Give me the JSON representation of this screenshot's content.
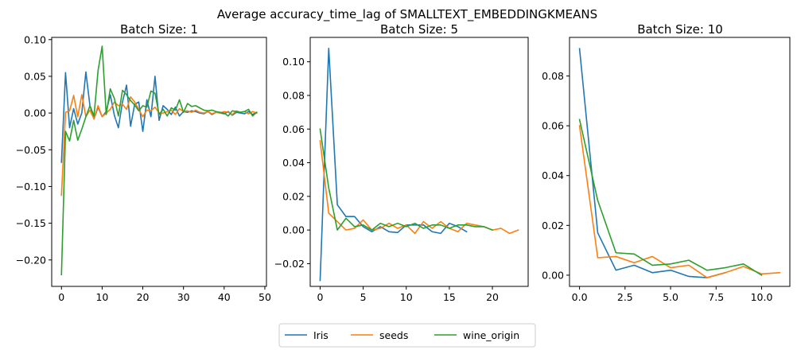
{
  "figure": {
    "suptitle": "Average accuracy_time_lag of SMALLTEXT_EMBEDDINGKMEANS"
  },
  "legend": {
    "placement": "bottom-center",
    "entries": [
      {
        "name": "Iris",
        "color": "#1f77b4"
      },
      {
        "name": "seeds",
        "color": "#ff7f0e"
      },
      {
        "name": "wine_origin",
        "color": "#2ca02c"
      }
    ]
  },
  "chart_data": [
    {
      "type": "line",
      "title": "Batch Size: 1",
      "xlabel": "",
      "ylabel": "",
      "xlim": [
        -2.4,
        50.4
      ],
      "ylim": [
        -0.236,
        0.103
      ],
      "xticks": [
        0,
        10,
        20,
        30,
        40,
        50
      ],
      "yticks": [
        -0.2,
        -0.15,
        -0.1,
        -0.05,
        0.0,
        0.05,
        0.1
      ],
      "xtick_labels": [
        "0",
        "10",
        "20",
        "30",
        "40",
        "50"
      ],
      "ytick_labels": [
        "−0.20",
        "−0.15",
        "−0.10",
        "−0.05",
        "0.00",
        "0.05",
        "0.10"
      ],
      "series": [
        {
          "name": "Iris",
          "color": "#1f77b4",
          "x": [
            0,
            1,
            2,
            3,
            4,
            5,
            6,
            7,
            8,
            9,
            10,
            11,
            12,
            13,
            14,
            15,
            16,
            17,
            18,
            19,
            20,
            21,
            22,
            23,
            24,
            25,
            26,
            27,
            28,
            29,
            30,
            31,
            32,
            33,
            34,
            35,
            36,
            37,
            38,
            39,
            40,
            41,
            42,
            43,
            44,
            45,
            46,
            47,
            48
          ],
          "y": [
            -0.067,
            0.055,
            -0.02,
            0.006,
            -0.015,
            0.0,
            0.056,
            0.01,
            -0.008,
            0.008,
            -0.005,
            0.002,
            0.025,
            -0.003,
            -0.02,
            0.015,
            0.038,
            -0.018,
            0.012,
            0.015,
            -0.025,
            0.018,
            -0.005,
            0.05,
            -0.01,
            0.01,
            0.005,
            -0.002,
            0.008,
            -0.004,
            0.002,
            0.001,
            0.003,
            0.002,
            0.0,
            -0.001,
            0.002,
            -0.002,
            0.001,
            0.0,
            -0.001,
            0.002,
            -0.003,
            0.001,
            0.0,
            -0.001,
            0.002,
            -0.002,
            0.001
          ]
        },
        {
          "name": "seeds",
          "color": "#ff7f0e",
          "x": [
            0,
            1,
            2,
            3,
            4,
            5,
            6,
            7,
            8,
            9,
            10,
            11,
            12,
            13,
            14,
            15,
            16,
            17,
            18,
            19,
            20,
            21,
            22,
            23,
            24,
            25,
            26,
            27,
            28,
            29,
            30,
            31,
            32,
            33,
            34,
            35,
            36,
            37,
            38,
            39,
            40,
            41,
            42,
            43,
            44,
            45,
            46,
            47,
            48
          ],
          "y": [
            -0.112,
            0.001,
            0.003,
            0.024,
            -0.005,
            0.025,
            -0.005,
            0.004,
            -0.008,
            0.01,
            -0.005,
            0.0,
            0.005,
            0.015,
            0.01,
            0.012,
            0.005,
            0.022,
            0.015,
            0.005,
            -0.005,
            0.004,
            0.003,
            0.008,
            0.0,
            0.0,
            0.002,
            0.004,
            -0.002,
            0.006,
            0.002,
            0.003,
            0.001,
            0.004,
            0.001,
            0.0,
            0.002,
            -0.001,
            0.001,
            0.0,
            0.002,
            0.001,
            -0.002,
            0.003,
            0.001,
            0.002,
            -0.001,
            0.002,
            0.0
          ]
        },
        {
          "name": "wine_origin",
          "color": "#2ca02c",
          "x": [
            0,
            1,
            2,
            3,
            4,
            5,
            6,
            7,
            8,
            9,
            10,
            11,
            12,
            13,
            14,
            15,
            16,
            17,
            18,
            19,
            20,
            21,
            22,
            23,
            24,
            25,
            26,
            27,
            28,
            29,
            30,
            31,
            32,
            33,
            34,
            35,
            36,
            37,
            38,
            39,
            40,
            41,
            42,
            43,
            44,
            45,
            46,
            47,
            48
          ],
          "y": [
            -0.22,
            -0.025,
            -0.038,
            -0.01,
            -0.037,
            -0.022,
            -0.005,
            0.01,
            -0.004,
            0.058,
            0.091,
            -0.002,
            0.033,
            0.02,
            -0.004,
            0.031,
            0.025,
            0.017,
            0.011,
            0.003,
            0.01,
            0.008,
            0.03,
            0.027,
            -0.002,
            0.005,
            -0.004,
            0.007,
            0.004,
            0.018,
            0.001,
            0.013,
            0.009,
            0.01,
            0.007,
            0.004,
            0.003,
            0.004,
            0.002,
            0.001,
            0.0,
            -0.004,
            0.003,
            0.002,
            0.001,
            0.002,
            0.005,
            -0.004,
            0.001
          ]
        }
      ]
    },
    {
      "type": "line",
      "title": "Batch Size: 5",
      "xlabel": "",
      "ylabel": "",
      "xlim": [
        -1.15,
        24.15
      ],
      "ylim": [
        -0.0335,
        0.1145
      ],
      "xticks": [
        0,
        5,
        10,
        15,
        20
      ],
      "yticks": [
        -0.02,
        0.0,
        0.02,
        0.04,
        0.06,
        0.08,
        0.1
      ],
      "xtick_labels": [
        "0",
        "5",
        "10",
        "15",
        "20"
      ],
      "ytick_labels": [
        "−0.02",
        "0.00",
        "0.02",
        "0.04",
        "0.06",
        "0.08",
        "0.10"
      ],
      "series": [
        {
          "name": "Iris",
          "color": "#1f77b4",
          "x": [
            0,
            1,
            2,
            3,
            4,
            5,
            6,
            7,
            8,
            9,
            10,
            11,
            12,
            13,
            14,
            15,
            16,
            17
          ],
          "y": [
            -0.03,
            0.108,
            0.015,
            0.008,
            0.008,
            0.002,
            -0.001,
            0.002,
            -0.001,
            -0.0015,
            0.003,
            0.003,
            0.003,
            -0.001,
            -0.002,
            0.004,
            0.002,
            -0.001
          ]
        },
        {
          "name": "seeds",
          "color": "#ff7f0e",
          "x": [
            0,
            1,
            2,
            3,
            4,
            5,
            6,
            7,
            8,
            9,
            10,
            11,
            12,
            13,
            14,
            15,
            16,
            17,
            18,
            19,
            20,
            21,
            22,
            23
          ],
          "y": [
            0.053,
            0.01,
            0.005,
            0.0,
            0.001,
            0.006,
            0.0,
            0.001,
            0.004,
            0.001,
            0.003,
            -0.002,
            0.005,
            0.001,
            0.005,
            0.001,
            -0.001,
            0.004,
            0.003,
            0.002,
            0.0,
            0.001,
            -0.002,
            0.0
          ]
        },
        {
          "name": "wine_origin",
          "color": "#2ca02c",
          "x": [
            0,
            1,
            2,
            3,
            4,
            5,
            6,
            7,
            8,
            9,
            10,
            11,
            12,
            13,
            14,
            15,
            16,
            17,
            18,
            19,
            20
          ],
          "y": [
            0.06,
            0.025,
            0.0,
            0.007,
            0.002,
            0.003,
            0.0,
            0.004,
            0.002,
            0.004,
            0.002,
            0.004,
            0.001,
            0.003,
            0.003,
            0.001,
            0.003,
            0.003,
            0.002,
            0.002,
            0.0
          ]
        }
      ]
    },
    {
      "type": "line",
      "title": "Batch Size: 10",
      "xlabel": "",
      "ylabel": "",
      "xlim": [
        -0.55,
        11.55
      ],
      "ylim": [
        -0.0045,
        0.0955
      ],
      "xticks": [
        0.0,
        2.5,
        5.0,
        7.5,
        10.0
      ],
      "yticks": [
        0.0,
        0.02,
        0.04,
        0.06,
        0.08
      ],
      "xtick_labels": [
        "0.0",
        "2.5",
        "5.0",
        "7.5",
        "10.0"
      ],
      "ytick_labels": [
        "0.00",
        "0.02",
        "0.04",
        "0.06",
        "0.08"
      ],
      "series": [
        {
          "name": "Iris",
          "color": "#1f77b4",
          "x": [
            0,
            1,
            2,
            3,
            4,
            5,
            6,
            7,
            8
          ],
          "y": [
            0.091,
            0.017,
            0.002,
            0.004,
            0.001,
            0.002,
            -0.0005,
            -0.001,
            0.001
          ]
        },
        {
          "name": "seeds",
          "color": "#ff7f0e",
          "x": [
            0,
            1,
            2,
            3,
            4,
            5,
            6,
            7,
            8,
            9,
            10,
            11
          ],
          "y": [
            0.06,
            0.007,
            0.0075,
            0.005,
            0.0075,
            0.003,
            0.004,
            -0.001,
            0.001,
            0.0035,
            0.0005,
            0.001
          ]
        },
        {
          "name": "wine_origin",
          "color": "#2ca02c",
          "x": [
            0,
            1,
            2,
            3,
            4,
            5,
            6,
            7,
            8,
            9,
            10
          ],
          "y": [
            0.0625,
            0.03,
            0.009,
            0.0085,
            0.004,
            0.0045,
            0.006,
            0.002,
            0.003,
            0.0045,
            0.0
          ]
        }
      ]
    }
  ]
}
